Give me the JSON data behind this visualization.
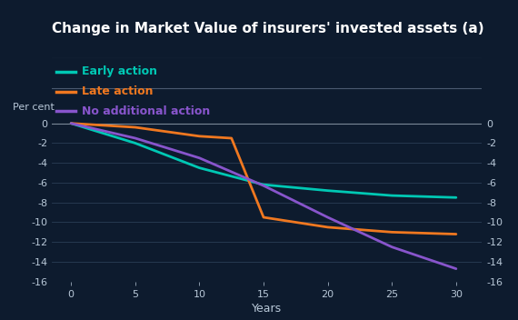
{
  "title": "Change in Market Value of insurers' invested assets",
  "title_superscript": " (a)",
  "ylabel_left": "Per cent",
  "xlabel": "Years",
  "background_color": "#0d1b2e",
  "sep_color": "#4a5a70",
  "text_color": "#b8c8d8",
  "white_color": "#ffffff",
  "ylim": [
    -16,
    0.5
  ],
  "yticks": [
    0,
    -2,
    -4,
    -6,
    -8,
    -10,
    -12,
    -14,
    -16
  ],
  "xticks": [
    0,
    5,
    10,
    15,
    20,
    25,
    30
  ],
  "x_range": [
    -1.5,
    32
  ],
  "series": [
    {
      "label": "Early action",
      "color": "#00c8b4",
      "x": [
        0,
        5,
        10,
        15,
        20,
        25,
        30
      ],
      "y": [
        0,
        -2.0,
        -4.5,
        -6.2,
        -6.8,
        -7.3,
        -7.5
      ]
    },
    {
      "label": "Late action",
      "color": "#f07820",
      "x": [
        0,
        5,
        10,
        12.5,
        15,
        20,
        25,
        30
      ],
      "y": [
        0,
        -0.4,
        -1.3,
        -1.5,
        -9.5,
        -10.5,
        -11.0,
        -11.2
      ]
    },
    {
      "label": "No additional action",
      "color": "#8855cc",
      "x": [
        0,
        5,
        10,
        15,
        20,
        25,
        30
      ],
      "y": [
        0,
        -1.5,
        -3.5,
        -6.3,
        -9.5,
        -12.5,
        -14.7
      ]
    }
  ],
  "line_width": 2.0,
  "grid_color": "#2a3d55",
  "zero_line_color": "#7a8898",
  "title_fontsize": 11,
  "legend_fontsize": 9,
  "axis_fontsize": 8,
  "ylabel_fontsize": 8
}
